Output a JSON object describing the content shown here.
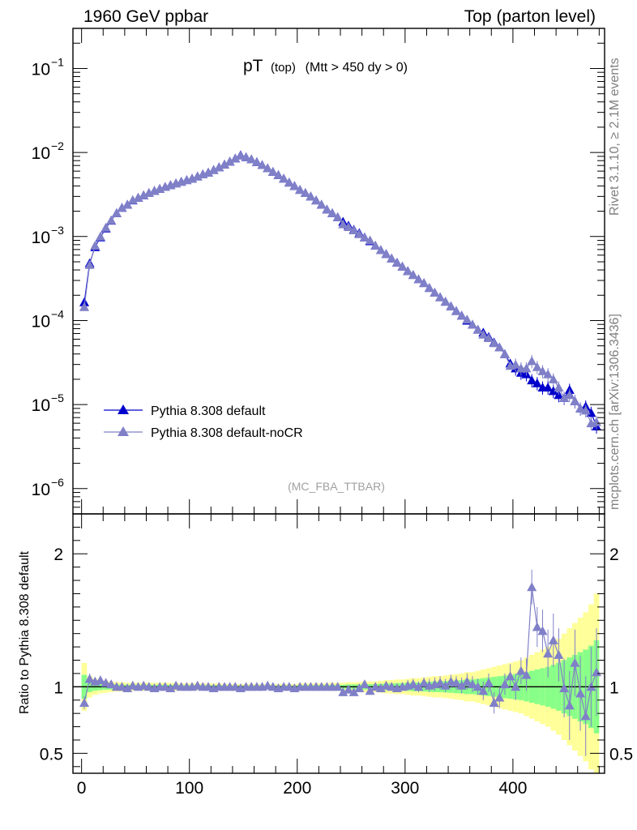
{
  "header": {
    "left": "1960 GeV ppbar",
    "right": "Top (parton level)"
  },
  "side": {
    "rivet": "Rivet 3.1.10, ≥ 2.1M events",
    "mcplots": "mcplots.cern.ch [arXiv:1306.3436]"
  },
  "chart_data": [
    {
      "type": "line",
      "title": "pT (top) (Mtt > 450 dy > 0)",
      "title_main": "pT",
      "title_sub": "(top)",
      "title_cut": "(Mtt > 450 dy > 0)",
      "analysis": "(MC_FBA_TTBAR)",
      "yscale": "log",
      "ylim": [
        5e-07,
        0.3
      ],
      "xlim": [
        -8,
        485
      ],
      "y_ticks": [
        {
          "value": 0.1,
          "label": "10",
          "exp": "−1"
        },
        {
          "value": 0.01,
          "label": "10",
          "exp": "−2"
        },
        {
          "value": 0.001,
          "label": "10",
          "exp": "−3"
        },
        {
          "value": 0.0001,
          "label": "10",
          "exp": "−4"
        },
        {
          "value": 1e-05,
          "label": "10",
          "exp": "−5"
        },
        {
          "value": 1e-06,
          "label": "10",
          "exp": "−6"
        }
      ],
      "legend_position": "bottom-left",
      "series": [
        {
          "name": "Pythia 8.308 default",
          "color": "#0000cc",
          "x": [
            2.5,
            7.5,
            12.5,
            17.5,
            22.5,
            27.5,
            32.5,
            37.5,
            42.5,
            47.5,
            52.5,
            57.5,
            62.5,
            67.5,
            72.5,
            77.5,
            82.5,
            87.5,
            92.5,
            97.5,
            102.5,
            107.5,
            112.5,
            117.5,
            122.5,
            127.5,
            132.5,
            137.5,
            142.5,
            147.5,
            152.5,
            157.5,
            162.5,
            167.5,
            172.5,
            177.5,
            182.5,
            187.5,
            192.5,
            197.5,
            202.5,
            207.5,
            212.5,
            217.5,
            222.5,
            227.5,
            232.5,
            237.5,
            242.5,
            247.5,
            252.5,
            257.5,
            262.5,
            267.5,
            272.5,
            277.5,
            282.5,
            287.5,
            292.5,
            297.5,
            302.5,
            307.5,
            312.5,
            317.5,
            322.5,
            327.5,
            332.5,
            337.5,
            342.5,
            347.5,
            352.5,
            357.5,
            362.5,
            367.5,
            372.5,
            377.5,
            382.5,
            387.5,
            392.5,
            397.5,
            402.5,
            407.5,
            412.5,
            417.5,
            422.5,
            427.5,
            432.5,
            437.5,
            442.5,
            447.5,
            452.5,
            457.5,
            462.5,
            467.5,
            472.5,
            477.5
          ],
          "y": [
            0.000165,
            0.00048,
            0.00075,
            0.00098,
            0.00125,
            0.00155,
            0.0019,
            0.0022,
            0.0024,
            0.0027,
            0.0029,
            0.0031,
            0.0033,
            0.0035,
            0.0037,
            0.0039,
            0.0041,
            0.0043,
            0.0045,
            0.0047,
            0.0049,
            0.0052,
            0.0055,
            0.0058,
            0.0062,
            0.0067,
            0.0072,
            0.0078,
            0.0085,
            0.0093,
            0.0088,
            0.0083,
            0.0077,
            0.0071,
            0.0065,
            0.0059,
            0.0054,
            0.0049,
            0.0044,
            0.004,
            0.0036,
            0.0033,
            0.003,
            0.0027,
            0.0024,
            0.0021,
            0.0019,
            0.0017,
            0.0015,
            0.00135,
            0.00121,
            0.0011,
            0.00098,
            0.00088,
            0.00078,
            0.00069,
            0.00062,
            0.00055,
            0.00049,
            0.00044,
            0.00039,
            0.00035,
            0.00031,
            0.00028,
            0.000245,
            0.000215,
            0.00019,
            0.000168,
            0.000148,
            0.00013,
            0.000115,
            0.0001,
            8.95e-05,
            7.8e-05,
            7.2e-05,
            6.4e-05,
            5.5e-05,
            4.8e-05,
            4e-05,
            3.1e-05,
            2.7e-05,
            2.4e-05,
            2.3e-05,
            1.95e-05,
            1.8e-05,
            1.6e-05,
            1.6e-05,
            1.45e-05,
            1.3e-05,
            1.2e-05,
            1.5e-05,
            1.1e-05,
            9e-06,
            9.5e-06,
            8e-06,
            5.5e-06
          ]
        },
        {
          "name": "Pythia 8.308 default-noCR",
          "color": "#8080c8",
          "x": [
            2.5,
            7.5,
            12.5,
            17.5,
            22.5,
            27.5,
            32.5,
            37.5,
            42.5,
            47.5,
            52.5,
            57.5,
            62.5,
            67.5,
            72.5,
            77.5,
            82.5,
            87.5,
            92.5,
            97.5,
            102.5,
            107.5,
            112.5,
            117.5,
            122.5,
            127.5,
            132.5,
            137.5,
            142.5,
            147.5,
            152.5,
            157.5,
            162.5,
            167.5,
            172.5,
            177.5,
            182.5,
            187.5,
            192.5,
            197.5,
            202.5,
            207.5,
            212.5,
            217.5,
            222.5,
            227.5,
            232.5,
            237.5,
            242.5,
            247.5,
            252.5,
            257.5,
            262.5,
            267.5,
            272.5,
            277.5,
            282.5,
            287.5,
            292.5,
            297.5,
            302.5,
            307.5,
            312.5,
            317.5,
            322.5,
            327.5,
            332.5,
            337.5,
            342.5,
            347.5,
            352.5,
            357.5,
            362.5,
            367.5,
            372.5,
            377.5,
            382.5,
            387.5,
            392.5,
            397.5,
            402.5,
            407.5,
            412.5,
            417.5,
            422.5,
            427.5,
            432.5,
            437.5,
            442.5,
            447.5,
            452.5,
            457.5,
            462.5,
            467.5,
            472.5,
            477.5
          ],
          "y": [
            0.000145,
            0.00046,
            0.00078,
            0.001,
            0.00128,
            0.00156,
            0.0019,
            0.0022,
            0.0024,
            0.00272,
            0.0029,
            0.0031,
            0.0033,
            0.0035,
            0.0037,
            0.0039,
            0.0041,
            0.0043,
            0.0045,
            0.0047,
            0.0049,
            0.0052,
            0.0055,
            0.0058,
            0.0062,
            0.0067,
            0.0072,
            0.0078,
            0.0085,
            0.0092,
            0.0088,
            0.0083,
            0.0077,
            0.0071,
            0.0065,
            0.0059,
            0.0054,
            0.0049,
            0.0044,
            0.004,
            0.0036,
            0.0033,
            0.003,
            0.0027,
            0.0024,
            0.0021,
            0.0019,
            0.0017,
            0.0014,
            0.0013,
            0.00119,
            0.00107,
            0.00098,
            0.0009,
            0.00078,
            0.00069,
            0.00062,
            0.00055,
            0.00049,
            0.00044,
            0.00039,
            0.00035,
            0.00031,
            0.00028,
            0.000245,
            0.000215,
            0.00019,
            0.000168,
            0.000148,
            0.00013,
            0.000115,
            0.000103,
            8.95e-05,
            7.8e-05,
            6.8e-05,
            6.2e-05,
            5.4e-05,
            4.8e-05,
            4e-05,
            2.9e-05,
            3e-05,
            2.7e-05,
            2.7e-05,
            3.3e-05,
            2.8e-05,
            2.5e-05,
            2.3e-05,
            2e-05,
            1.6e-05,
            1.2e-05,
            1.3e-05,
            1.1e-05,
            9e-06,
            8.5e-06,
            6e-06,
            6.2e-06
          ]
        }
      ]
    },
    {
      "type": "line",
      "ylabel": "Ratio to Pythia 8.308 default",
      "ylim": [
        0.35,
        2.3
      ],
      "xlim": [
        -8,
        485
      ],
      "y_ticks": [
        0.5,
        1,
        2
      ],
      "x_ticks": [
        0,
        100,
        200,
        300,
        400
      ],
      "bands": {
        "yellow_color": "#ffff99",
        "green_color": "#88ff88",
        "x_edges": [
          0,
          5,
          10,
          15,
          20,
          25,
          30,
          35,
          40,
          45,
          50,
          55,
          60,
          65,
          70,
          75,
          80,
          85,
          90,
          95,
          100,
          105,
          110,
          115,
          120,
          125,
          130,
          135,
          140,
          145,
          150,
          155,
          160,
          165,
          170,
          175,
          180,
          185,
          190,
          195,
          200,
          205,
          210,
          215,
          220,
          225,
          230,
          235,
          240,
          245,
          250,
          255,
          260,
          265,
          270,
          275,
          280,
          285,
          290,
          295,
          300,
          305,
          310,
          315,
          320,
          325,
          330,
          335,
          340,
          345,
          350,
          355,
          360,
          365,
          370,
          375,
          380,
          385,
          390,
          395,
          400,
          405,
          410,
          415,
          420,
          425,
          430,
          435,
          440,
          445,
          450,
          455,
          460,
          465,
          470,
          475,
          480
        ],
        "yellow_half": [
          0.18,
          0.08,
          0.06,
          0.05,
          0.045,
          0.04,
          0.035,
          0.035,
          0.03,
          0.03,
          0.03,
          0.03,
          0.03,
          0.03,
          0.03,
          0.03,
          0.03,
          0.03,
          0.025,
          0.025,
          0.025,
          0.025,
          0.025,
          0.025,
          0.025,
          0.025,
          0.02,
          0.02,
          0.02,
          0.02,
          0.02,
          0.02,
          0.02,
          0.02,
          0.02,
          0.02,
          0.02,
          0.02,
          0.02,
          0.02,
          0.025,
          0.025,
          0.025,
          0.025,
          0.025,
          0.025,
          0.03,
          0.03,
          0.03,
          0.035,
          0.035,
          0.035,
          0.04,
          0.04,
          0.04,
          0.045,
          0.05,
          0.05,
          0.055,
          0.055,
          0.06,
          0.065,
          0.065,
          0.07,
          0.075,
          0.08,
          0.08,
          0.085,
          0.09,
          0.095,
          0.1,
          0.11,
          0.11,
          0.12,
          0.13,
          0.14,
          0.15,
          0.16,
          0.17,
          0.18,
          0.19,
          0.2,
          0.22,
          0.24,
          0.26,
          0.28,
          0.3,
          0.33,
          0.36,
          0.4,
          0.44,
          0.48,
          0.52,
          0.56,
          0.62,
          0.7
        ],
        "green_half": [
          0.09,
          0.04,
          0.03,
          0.025,
          0.022,
          0.02,
          0.018,
          0.017,
          0.015,
          0.015,
          0.015,
          0.015,
          0.015,
          0.015,
          0.015,
          0.015,
          0.015,
          0.015,
          0.013,
          0.013,
          0.013,
          0.013,
          0.013,
          0.013,
          0.013,
          0.013,
          0.01,
          0.01,
          0.01,
          0.01,
          0.01,
          0.01,
          0.01,
          0.01,
          0.01,
          0.01,
          0.01,
          0.01,
          0.01,
          0.01,
          0.013,
          0.013,
          0.013,
          0.013,
          0.013,
          0.013,
          0.015,
          0.015,
          0.015,
          0.018,
          0.018,
          0.018,
          0.02,
          0.02,
          0.02,
          0.023,
          0.025,
          0.025,
          0.028,
          0.028,
          0.03,
          0.033,
          0.033,
          0.035,
          0.038,
          0.04,
          0.04,
          0.043,
          0.045,
          0.048,
          0.05,
          0.055,
          0.055,
          0.06,
          0.065,
          0.07,
          0.075,
          0.08,
          0.085,
          0.09,
          0.095,
          0.1,
          0.11,
          0.12,
          0.13,
          0.14,
          0.15,
          0.165,
          0.18,
          0.2,
          0.22,
          0.24,
          0.26,
          0.28,
          0.31,
          0.35
        ]
      },
      "ratio_x": [
        2.5,
        7.5,
        12.5,
        17.5,
        22.5,
        27.5,
        32.5,
        37.5,
        42.5,
        47.5,
        52.5,
        57.5,
        62.5,
        67.5,
        72.5,
        77.5,
        82.5,
        87.5,
        92.5,
        97.5,
        102.5,
        107.5,
        112.5,
        117.5,
        122.5,
        127.5,
        132.5,
        137.5,
        142.5,
        147.5,
        152.5,
        157.5,
        162.5,
        167.5,
        172.5,
        177.5,
        182.5,
        187.5,
        192.5,
        197.5,
        202.5,
        207.5,
        212.5,
        217.5,
        222.5,
        227.5,
        232.5,
        237.5,
        242.5,
        247.5,
        252.5,
        257.5,
        262.5,
        267.5,
        272.5,
        277.5,
        282.5,
        287.5,
        292.5,
        297.5,
        302.5,
        307.5,
        312.5,
        317.5,
        322.5,
        327.5,
        332.5,
        337.5,
        342.5,
        347.5,
        352.5,
        357.5,
        362.5,
        367.5,
        372.5,
        377.5,
        382.5,
        387.5,
        392.5,
        397.5,
        402.5,
        407.5,
        412.5,
        417.5,
        422.5,
        427.5,
        432.5,
        437.5,
        442.5,
        447.5,
        452.5,
        457.5,
        462.5,
        467.5,
        472.5,
        477.5
      ],
      "ratio_y": [
        0.88,
        1.06,
        1.04,
        1.05,
        1.03,
        1.02,
        1.0,
        1.0,
        0.99,
        1.01,
        1.0,
        1.01,
        1.0,
        0.99,
        1.0,
        1.0,
        0.99,
        1.01,
        1.0,
        1.0,
        1.0,
        1.01,
        1.0,
        1.0,
        0.99,
        1.0,
        1.0,
        1.0,
        1.0,
        0.99,
        1.0,
        1.0,
        1.0,
        1.0,
        1.01,
        1.0,
        0.99,
        1.0,
        1.0,
        0.99,
        1.0,
        1.0,
        1.0,
        1.0,
        1.0,
        1.0,
        1.0,
        1.0,
        0.96,
        0.98,
        0.96,
        0.99,
        1.02,
        0.97,
        1.0,
        0.99,
        1.01,
        1.0,
        0.99,
        1.0,
        1.01,
        1.02,
        1.0,
        1.03,
        1.01,
        1.02,
        1.03,
        1.01,
        1.04,
        1.03,
        1.01,
        1.04,
        1.02,
        1.0,
        0.97,
        1.03,
        0.88,
        0.92,
        1.02,
        1.08,
        1.0,
        1.12,
        1.09,
        1.75,
        1.45,
        1.42,
        1.25,
        1.35,
        1.24,
        0.99,
        0.86,
        1.18,
        0.95,
        0.78,
        1.0,
        1.11
      ],
      "ratio_err": [
        0.05,
        0.04,
        0.03,
        0.03,
        0.02,
        0.02,
        0.02,
        0.02,
        0.02,
        0.02,
        0.02,
        0.02,
        0.02,
        0.02,
        0.02,
        0.02,
        0.02,
        0.02,
        0.02,
        0.02,
        0.02,
        0.02,
        0.02,
        0.02,
        0.02,
        0.02,
        0.02,
        0.02,
        0.02,
        0.02,
        0.02,
        0.02,
        0.02,
        0.02,
        0.02,
        0.02,
        0.02,
        0.02,
        0.02,
        0.02,
        0.02,
        0.02,
        0.02,
        0.02,
        0.02,
        0.02,
        0.02,
        0.02,
        0.02,
        0.02,
        0.02,
        0.02,
        0.03,
        0.03,
        0.03,
        0.03,
        0.03,
        0.03,
        0.03,
        0.03,
        0.04,
        0.04,
        0.04,
        0.04,
        0.05,
        0.05,
        0.05,
        0.05,
        0.05,
        0.05,
        0.06,
        0.06,
        0.06,
        0.06,
        0.07,
        0.07,
        0.08,
        0.08,
        0.08,
        0.09,
        0.1,
        0.1,
        0.12,
        0.13,
        0.15,
        0.16,
        0.18,
        0.2,
        0.2,
        0.22,
        0.26,
        0.25,
        0.28,
        0.3,
        0.3,
        0.33
      ]
    }
  ]
}
